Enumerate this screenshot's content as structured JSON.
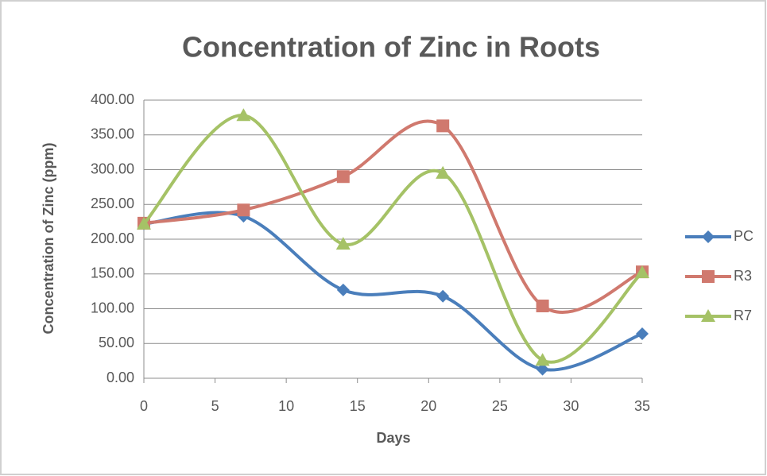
{
  "chart_data": {
    "type": "line",
    "title": "Concentration of Zinc in Roots",
    "x_label": "Days",
    "y_label": "Concentration of Zinc (ppm)",
    "x": [
      0,
      7,
      14,
      21,
      28,
      35
    ],
    "series": [
      {
        "name": "PC",
        "color": "#4a7ebb",
        "marker": "diamond",
        "values": [
          222,
          233,
          127,
          118,
          13,
          64
        ]
      },
      {
        "name": "R3",
        "color": "#d0796e",
        "marker": "square",
        "values": [
          223,
          242,
          290,
          363,
          104,
          153
        ]
      },
      {
        "name": "R7",
        "color": "#a5c266",
        "marker": "triangle",
        "values": [
          222,
          378,
          193,
          295,
          26,
          152
        ]
      }
    ],
    "smooth": true,
    "xlim": [
      0,
      35
    ],
    "xticks": [
      0,
      5,
      10,
      15,
      20,
      25,
      30,
      35
    ],
    "ylim": [
      0,
      400
    ],
    "yticks": [
      {
        "value": 0,
        "label": "0.00"
      },
      {
        "value": 50,
        "label": "50.00"
      },
      {
        "value": 100,
        "label": "100.00"
      },
      {
        "value": 150,
        "label": "150.00"
      },
      {
        "value": 200,
        "label": "200.00"
      },
      {
        "value": 250,
        "label": "250.00"
      },
      {
        "value": 300,
        "label": "300.00"
      },
      {
        "value": 350,
        "label": "350.00"
      },
      {
        "value": 400,
        "label": "400.00"
      }
    ],
    "grid": true,
    "legend": "right"
  }
}
